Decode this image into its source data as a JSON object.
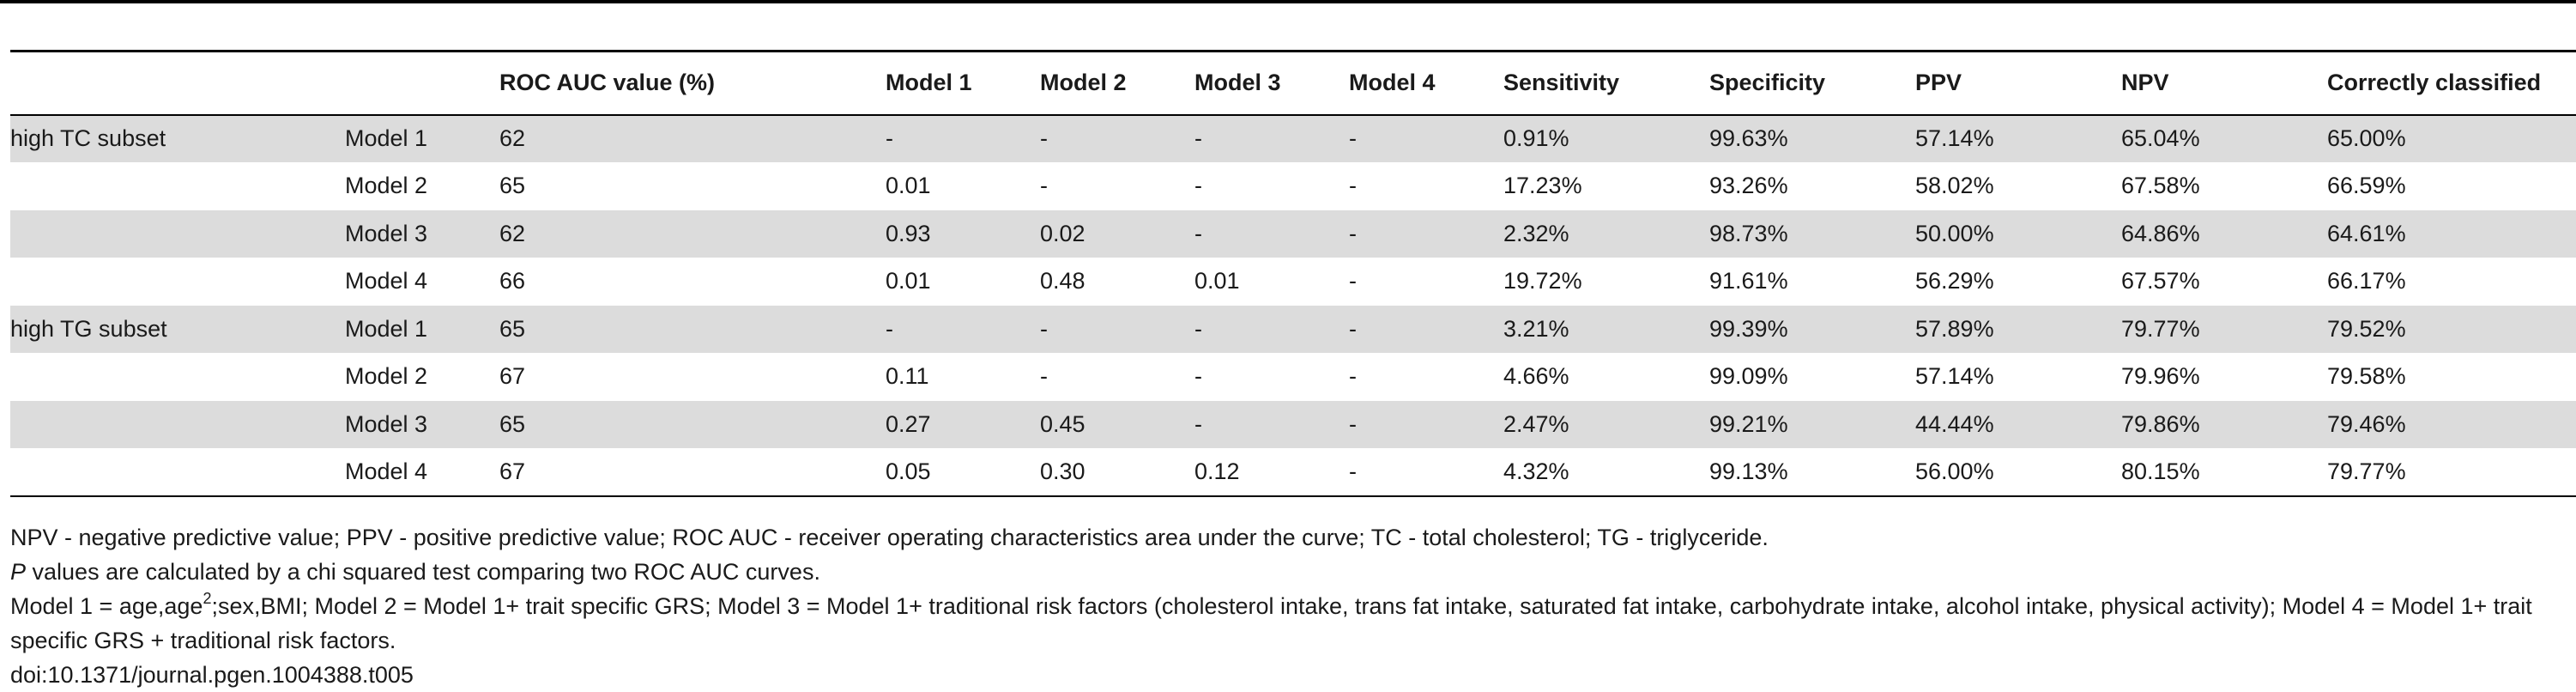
{
  "table": {
    "headers": [
      "",
      "",
      "ROC AUC value (%)",
      "Model 1",
      "Model 2",
      "Model 3",
      "Model 4",
      "Sensitivity",
      "Specificity",
      "PPV",
      "NPV",
      "Correctly classified"
    ],
    "rows": [
      {
        "group": "high TC subset",
        "model": "Model 1",
        "auc": "62",
        "m1": "-",
        "m2": "-",
        "m3": "-",
        "m4": "-",
        "sens": "0.91%",
        "spec": "99.63%",
        "ppv": "57.14%",
        "npv": "65.04%",
        "cc": "65.00%"
      },
      {
        "group": "",
        "model": "Model 2",
        "auc": "65",
        "m1": "0.01",
        "m2": "-",
        "m3": "-",
        "m4": "-",
        "sens": "17.23%",
        "spec": "93.26%",
        "ppv": "58.02%",
        "npv": "67.58%",
        "cc": "66.59%"
      },
      {
        "group": "",
        "model": "Model 3",
        "auc": "62",
        "m1": "0.93",
        "m2": "0.02",
        "m3": "-",
        "m4": "-",
        "sens": "2.32%",
        "spec": "98.73%",
        "ppv": "50.00%",
        "npv": "64.86%",
        "cc": "64.61%"
      },
      {
        "group": "",
        "model": "Model 4",
        "auc": "66",
        "m1": "0.01",
        "m2": "0.48",
        "m3": "0.01",
        "m4": "-",
        "sens": "19.72%",
        "spec": "91.61%",
        "ppv": "56.29%",
        "npv": "67.57%",
        "cc": "66.17%"
      },
      {
        "group": "high TG subset",
        "model": "Model 1",
        "auc": "65",
        "m1": "-",
        "m2": "-",
        "m3": "-",
        "m4": "-",
        "sens": "3.21%",
        "spec": "99.39%",
        "ppv": "57.89%",
        "npv": "79.77%",
        "cc": "79.52%"
      },
      {
        "group": "",
        "model": "Model 2",
        "auc": "67",
        "m1": "0.11",
        "m2": "-",
        "m3": "-",
        "m4": "-",
        "sens": "4.66%",
        "spec": "99.09%",
        "ppv": "57.14%",
        "npv": "79.96%",
        "cc": "79.58%"
      },
      {
        "group": "",
        "model": "Model 3",
        "auc": "65",
        "m1": "0.27",
        "m2": "0.45",
        "m3": "-",
        "m4": "-",
        "sens": "2.47%",
        "spec": "99.21%",
        "ppv": "44.44%",
        "npv": "79.86%",
        "cc": "79.46%"
      },
      {
        "group": "",
        "model": "Model 4",
        "auc": "67",
        "m1": "0.05",
        "m2": "0.30",
        "m3": "0.12",
        "m4": "-",
        "sens": "4.32%",
        "spec": "99.13%",
        "ppv": "56.00%",
        "npv": "80.15%",
        "cc": "79.77%"
      }
    ]
  },
  "notes": {
    "abbrev": "NPV - negative predictive value; PPV - positive predictive value; ROC AUC - receiver operating characteristics area under the curve; TC - total cholesterol; TG - triglyceride.",
    "p_italic": "P",
    "p_rest": " values are calculated by a chi squared test comparing two ROC AUC curves.",
    "models_a": "Model 1 = age,age",
    "models_sup": "2",
    "models_b": ";sex,BMI; Model 2 = Model 1+ trait specific GRS; Model 3 = Model 1+ traditional risk factors (cholesterol intake, trans fat intake, saturated fat intake, carbohydrate intake, alcohol intake, physical activity); Model 4 = Model 1+ trait specific GRS + traditional risk factors.",
    "doi": "doi:10.1371/journal.pgen.1004388.t005"
  },
  "colors": {
    "shaded_row": "#dcdcdc",
    "rule": "#000000",
    "text": "#1a1a1a"
  }
}
